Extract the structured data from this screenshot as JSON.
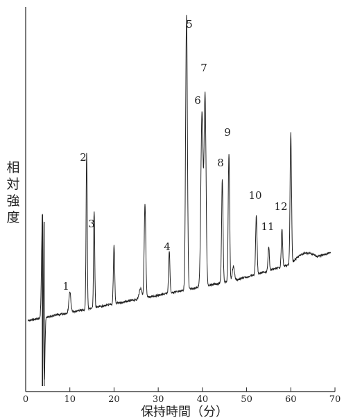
{
  "chart_data": {
    "type": "line",
    "ylabel": "相対強度",
    "xlabel": "保持時間（分）",
    "xlim": [
      0,
      70
    ],
    "x_ticks": [
      0,
      10,
      20,
      30,
      40,
      50,
      60,
      70
    ],
    "x_tick_labels": [
      "0",
      "10",
      "20",
      "30",
      "40",
      "50",
      "60",
      "70"
    ],
    "y_ticks_shown": false,
    "grid": false,
    "peaks": [
      {
        "label": "1",
        "x": 10.0
      },
      {
        "label": "2",
        "x": 13.8
      },
      {
        "label": "3",
        "x": 15.5
      },
      {
        "label": "4",
        "x": 32.5
      },
      {
        "label": "5",
        "x": 36.4
      },
      {
        "label": "6",
        "x": 40.0
      },
      {
        "label": "7",
        "x": 40.6
      },
      {
        "label": "8",
        "x": 44.5
      },
      {
        "label": "9",
        "x": 46.0
      },
      {
        "label": "10",
        "x": 52.2
      },
      {
        "label": "11",
        "x": 55.0
      },
      {
        "label": "12",
        "x": 58.0
      }
    ]
  }
}
